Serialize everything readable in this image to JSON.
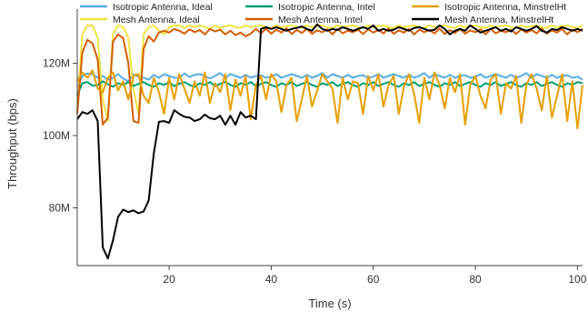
{
  "chart_data": {
    "type": "line",
    "title": "",
    "xlabel": "Time (s)",
    "ylabel": "Throughput (bps)",
    "xlim": [
      2,
      101
    ],
    "ylim": [
      64000000,
      135000000
    ],
    "x_ticks": [
      {
        "value": 20,
        "label": "20"
      },
      {
        "value": 40,
        "label": "40"
      },
      {
        "value": 60,
        "label": "60"
      },
      {
        "value": 80,
        "label": "80"
      },
      {
        "value": 100,
        "label": "100"
      }
    ],
    "y_ticks": [
      {
        "value": 80000000,
        "label": "80M"
      },
      {
        "value": 100000000,
        "label": "100M"
      },
      {
        "value": 120000000,
        "label": "120M"
      }
    ],
    "grid": false,
    "legend_placement": "top",
    "x_start": 2,
    "x_step": 1,
    "series": [
      {
        "name": "Isotropic Antenna, Ideal",
        "color": "#5aaee3",
        "values": [
          113500000,
          116500000,
          117200000,
          117000000,
          116000000,
          116500000,
          115500000,
          116000000,
          117000000,
          115800000,
          115000000,
          117000000,
          116300000,
          116000000,
          115500000,
          116800000,
          116000000,
          117000000,
          116500000,
          116000000,
          116000000,
          117200000,
          116200000,
          116800000,
          117000000,
          116500000,
          115800000,
          116500000,
          117300000,
          116000000,
          117000000,
          116500000,
          116000000,
          116800000,
          116000000,
          116500000,
          116700000,
          116000000,
          116300000,
          117000000,
          116000000,
          116500000,
          117000000,
          116500000,
          116000000,
          116800000,
          116000000,
          116500000,
          117300000,
          116000000,
          117000000,
          116500000,
          116000000,
          116800000,
          116000000,
          116500000,
          116700000,
          116000000,
          116300000,
          117000000,
          116000000,
          116500000,
          117000000,
          116500000,
          116000000,
          116800000,
          116000000,
          116500000,
          117300000,
          116000000,
          117000000,
          116500000,
          116000000,
          116800000,
          116000000,
          116500000,
          116700000,
          116000000,
          116300000,
          117000000,
          116000000,
          116500000,
          117000000,
          116500000,
          116000000,
          116800000,
          116000000,
          116500000,
          117300000,
          116000000,
          117000000,
          116500000,
          116000000,
          116800000,
          116000000,
          116500000,
          116700000,
          116000000,
          116300000,
          115500000
        ]
      },
      {
        "name": "Mesh Antenna, Ideal",
        "color": "#f0e442",
        "values": [
          107000000,
          128000000,
          130500000,
          130500000,
          127000000,
          110000000,
          104000000,
          128000000,
          130500000,
          130000000,
          127000000,
          113000000,
          106000000,
          128000000,
          130000000,
          130500000,
          129000000,
          128000000,
          130000000,
          130500000,
          130500000,
          129800000,
          130500000,
          130000000,
          130500000,
          130000000,
          129500000,
          130500000,
          129800000,
          130300000,
          130500000,
          130000000,
          129800000,
          130500000,
          130000000,
          130300000,
          130500000,
          130000000,
          129800000,
          130500000,
          130000000,
          130300000,
          130500000,
          130000000,
          129800000,
          130500000,
          130000000,
          130300000,
          130500000,
          130000000,
          129800000,
          130500000,
          130000000,
          130300000,
          130500000,
          130000000,
          129800000,
          130500000,
          130000000,
          130300000,
          130500000,
          130000000,
          129800000,
          130500000,
          130000000,
          130300000,
          130500000,
          130000000,
          129800000,
          130500000,
          130000000,
          130300000,
          130500000,
          130000000,
          129800000,
          130500000,
          130000000,
          130300000,
          130500000,
          130000000,
          129800000,
          130500000,
          130000000,
          130300000,
          130500000,
          130000000,
          129800000,
          130500000,
          130000000,
          130300000,
          130500000,
          130000000,
          129800000,
          130500000,
          130000000,
          130300000,
          130500000,
          130000000,
          129800000,
          130500000
        ]
      },
      {
        "name": "Isotropic Antenna, Intel",
        "color": "#009e73",
        "values": [
          111000000,
          114500000,
          114800000,
          113800000,
          114000000,
          115000000,
          114200000,
          113500000,
          114500000,
          114000000,
          114800000,
          113700000,
          114300000,
          114800000,
          114000000,
          113500000,
          114500000,
          114000000,
          114800000,
          113700000,
          114300000,
          114800000,
          114000000,
          113500000,
          114500000,
          114000000,
          114800000,
          113700000,
          114300000,
          114800000,
          114000000,
          113500000,
          114500000,
          114000000,
          114800000,
          113700000,
          114300000,
          114800000,
          114000000,
          113500000,
          114500000,
          114000000,
          114800000,
          113700000,
          114300000,
          114800000,
          114000000,
          113500000,
          114500000,
          114000000,
          114800000,
          113700000,
          114300000,
          114800000,
          114000000,
          113500000,
          114500000,
          114000000,
          114800000,
          113700000,
          114300000,
          114800000,
          114000000,
          113500000,
          114500000,
          114000000,
          114800000,
          113700000,
          114300000,
          114800000,
          114000000,
          113500000,
          114500000,
          114000000,
          114800000,
          113700000,
          114300000,
          114800000,
          114000000,
          113500000,
          114500000,
          114000000,
          114800000,
          113700000,
          114300000,
          114800000,
          114000000,
          113500000,
          114500000,
          114000000,
          114800000,
          113700000,
          114300000,
          114800000,
          114000000,
          113500000,
          114500000,
          114000000,
          114800000,
          114500000
        ]
      },
      {
        "name": "Mesh Antenna, Intel",
        "color": "#d55e00",
        "values": [
          106000000,
          123000000,
          126500000,
          125500000,
          121000000,
          103000000,
          105000000,
          126000000,
          128000000,
          127000000,
          120000000,
          104000000,
          103500000,
          124000000,
          127500000,
          126000000,
          128500000,
          129000000,
          128500000,
          129500000,
          129000000,
          128200000,
          129400000,
          128600000,
          129200000,
          128000000,
          129500000,
          128800000,
          129300000,
          128000000,
          129000000,
          127800000,
          128500000,
          127500000,
          128200000,
          129500000,
          128300000,
          129600000,
          128200000,
          129300000,
          128500000,
          129700000,
          128100000,
          129200000,
          128400000,
          129500000,
          128200000,
          129100000,
          128600000,
          129400000,
          128000000,
          129500000,
          128300000,
          129000000,
          128600000,
          129300000,
          128100000,
          129400000,
          128500000,
          129200000,
          128300000,
          129600000,
          128200000,
          129100000,
          128500000,
          129500000,
          128000000,
          129300000,
          128600000,
          129200000,
          128300000,
          129600000,
          128100000,
          129200000,
          128400000,
          129500000,
          128200000,
          129100000,
          128600000,
          129400000,
          128000000,
          129500000,
          128300000,
          129000000,
          128600000,
          129300000,
          128100000,
          129400000,
          128500000,
          129200000,
          128300000,
          129600000,
          128200000,
          129100000,
          128500000,
          129500000,
          128000000,
          129300000,
          128600000,
          129500000
        ]
      },
      {
        "name": "Isotropic Antenna, MinstrelHt",
        "color": "#e69f00",
        "values": [
          115000000,
          117500000,
          116000000,
          118000000,
          113000000,
          112000000,
          116000000,
          117500000,
          112500000,
          115000000,
          110000000,
          116500000,
          117000000,
          111000000,
          109000000,
          116000000,
          112000000,
          106000000,
          116000000,
          110000000,
          117000000,
          113000000,
          109000000,
          115000000,
          111000000,
          117500000,
          109000000,
          114500000,
          112000000,
          117000000,
          107000000,
          115500000,
          111000000,
          116500000,
          104500000,
          114000000,
          116500000,
          110000000,
          117000000,
          115000000,
          106500000,
          114000000,
          116000000,
          104000000,
          110000000,
          116500000,
          108000000,
          112500000,
          117000000,
          115000000,
          113000000,
          103500000,
          116000000,
          110000000,
          115000000,
          114500000,
          106000000,
          116500000,
          112500000,
          117000000,
          108000000,
          114000000,
          116500000,
          106000000,
          113500000,
          117000000,
          111500000,
          103500000,
          116000000,
          110000000,
          117500000,
          114000000,
          107500000,
          116000000,
          112000000,
          117000000,
          103000000,
          114000000,
          116500000,
          111000000,
          107500000,
          115500000,
          117000000,
          106000000,
          114500000,
          113000000,
          116500000,
          103500000,
          114000000,
          117000000,
          113000000,
          107000000,
          116500000,
          105000000,
          111000000,
          117000000,
          104000000,
          115000000,
          102000000,
          114000000
        ]
      },
      {
        "name": "Mesh Antenna, MinstrelHt",
        "color": "#000000",
        "values": [
          104500000,
          106500000,
          106000000,
          107000000,
          104000000,
          69000000,
          66000000,
          71000000,
          77500000,
          79500000,
          78800000,
          79300000,
          78500000,
          79000000,
          82000000,
          95000000,
          103800000,
          104000000,
          103500000,
          107000000,
          106000000,
          105200000,
          105000000,
          104000000,
          104500000,
          105800000,
          104800000,
          104500000,
          105500000,
          103000000,
          105500000,
          103000000,
          106500000,
          105000000,
          105500000,
          104500000,
          129500000,
          130000000,
          129500000,
          130000000,
          129500000,
          129000000,
          129500000,
          129800000,
          130200000,
          129500000,
          129000000,
          130800000,
          129500000,
          129000000,
          129500000,
          129200000,
          130000000,
          129500000,
          129000000,
          129500000,
          130000000,
          129500000,
          130500000,
          129000000,
          129500000,
          129000000,
          129300000,
          130000000,
          129500000,
          129000000,
          129800000,
          130000000,
          129500000,
          129000000,
          129300000,
          130500000,
          129500000,
          128000000,
          129000000,
          129500000,
          129000000,
          130500000,
          129500000,
          128500000,
          129000000,
          129500000,
          130000000,
          129000000,
          129500000,
          128800000,
          130000000,
          129500000,
          129000000,
          129500000,
          130300000,
          129000000,
          128500000,
          129500000,
          129200000,
          130000000,
          129500000,
          129000000,
          129500000,
          129000000
        ]
      }
    ]
  }
}
